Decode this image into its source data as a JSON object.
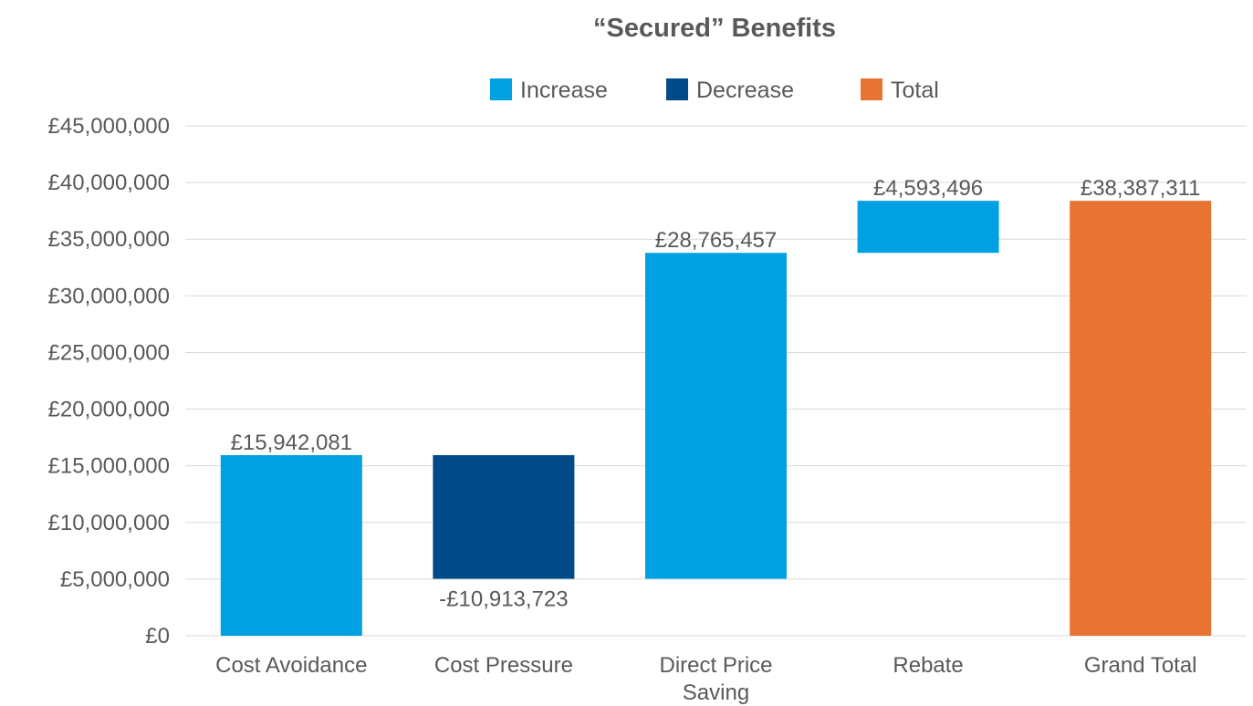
{
  "chart_data": {
    "type": "bar",
    "subtype": "waterfall",
    "title": "“Secured” Benefits",
    "legend": {
      "position": "top",
      "entries": [
        {
          "label": "Increase",
          "color": "#00A0E3"
        },
        {
          "label": "Decrease",
          "color": "#004A87"
        },
        {
          "label": "Total",
          "color": "#E87433"
        }
      ]
    },
    "categories": [
      [
        "Cost Avoidance"
      ],
      [
        "Cost Pressure"
      ],
      [
        "Direct Price",
        "Saving"
      ],
      [
        "Rebate"
      ],
      [
        "Grand Total"
      ]
    ],
    "bars": [
      {
        "kind": "increase",
        "start": 0,
        "end": 15942081,
        "label": "£15,942,081"
      },
      {
        "kind": "decrease",
        "start": 15942081,
        "end": 5028358,
        "label": "-£10,913,723"
      },
      {
        "kind": "increase",
        "start": 5028358,
        "end": 33793815,
        "label": "£28,765,457"
      },
      {
        "kind": "increase",
        "start": 33793815,
        "end": 38387311,
        "label": "£4,593,496"
      },
      {
        "kind": "total",
        "start": 0,
        "end": 38387311,
        "label": "£38,387,311"
      }
    ],
    "ylim": [
      0,
      45000000
    ],
    "yticks": [
      0,
      5000000,
      10000000,
      15000000,
      20000000,
      25000000,
      30000000,
      35000000,
      40000000,
      45000000
    ],
    "ytick_labels": [
      "£0",
      "£5,000,000",
      "£10,000,000",
      "£15,000,000",
      "£20,000,000",
      "£25,000,000",
      "£30,000,000",
      "£35,000,000",
      "£40,000,000",
      "£45,000,000"
    ],
    "grid": true,
    "colors": {
      "increase": "#00A0E3",
      "decrease": "#004A87",
      "total": "#E87433"
    }
  }
}
